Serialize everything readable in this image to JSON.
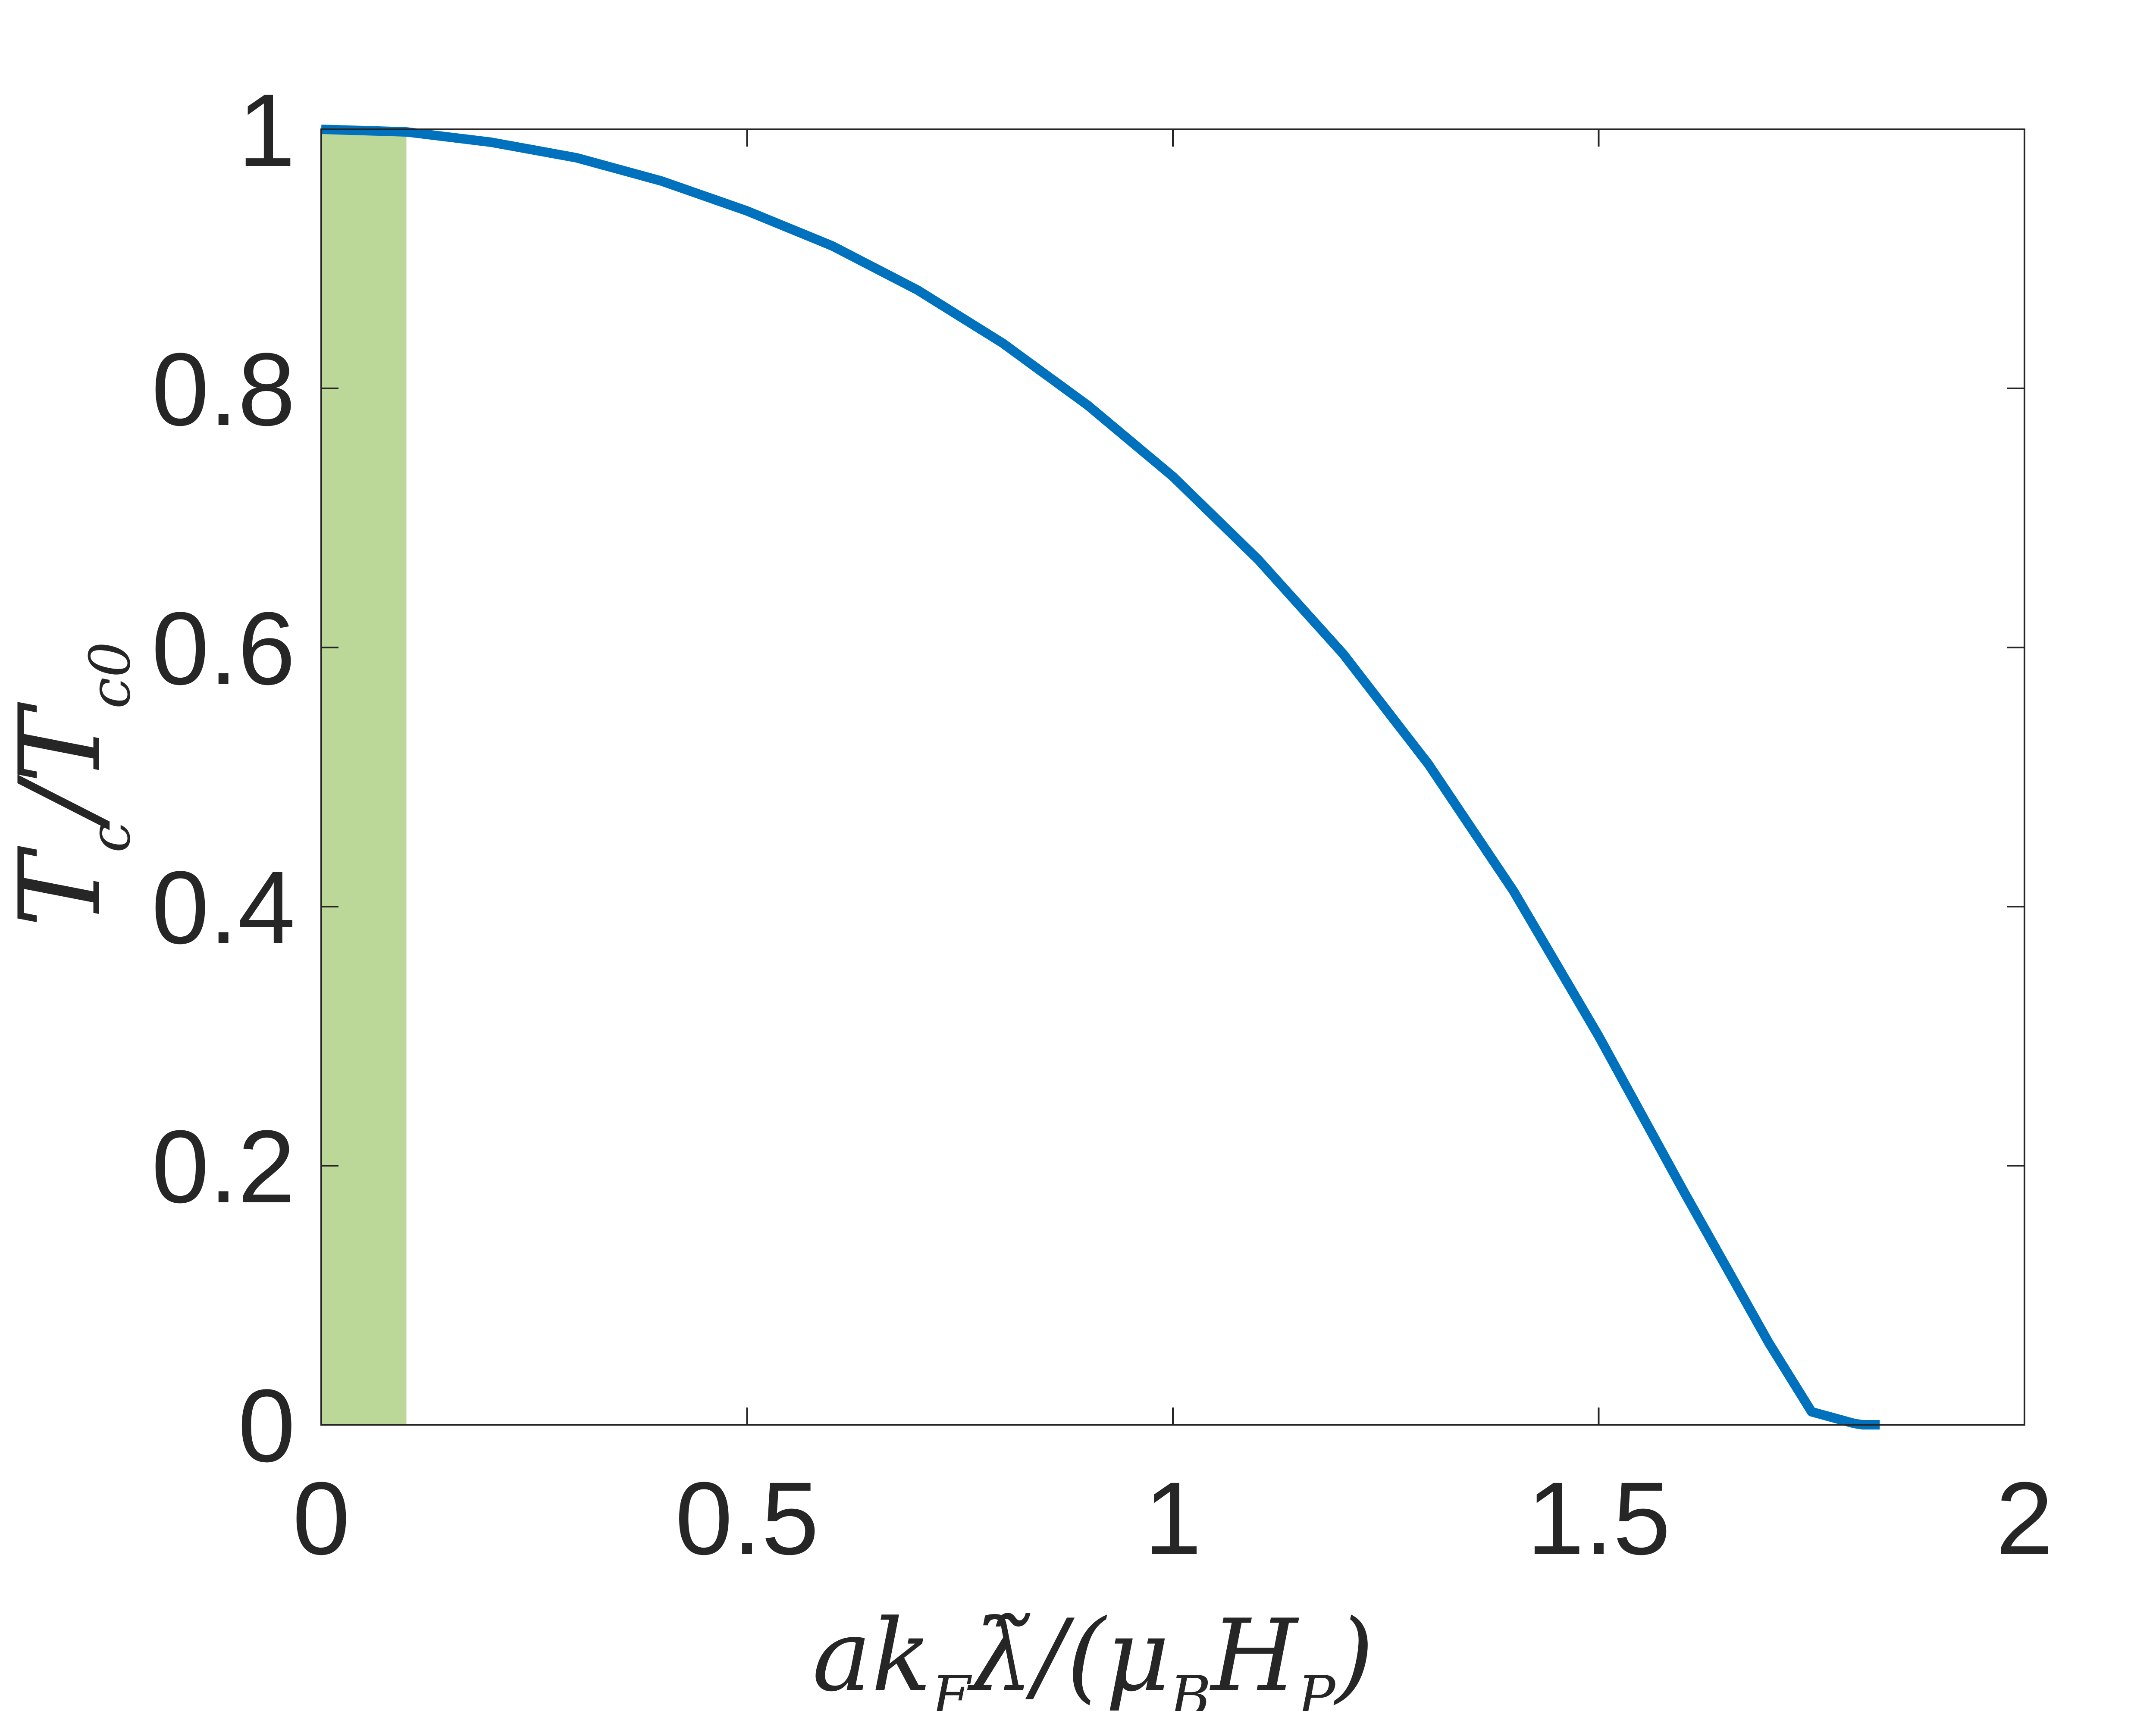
{
  "chart_data": {
    "type": "line",
    "title": "",
    "xlabel": "ak_F λ̃/(μ_B H_P)",
    "ylabel": "T_c/T_c0",
    "xlim": [
      0,
      2
    ],
    "ylim": [
      0,
      1
    ],
    "xticks": [
      0,
      0.5,
      1,
      1.5,
      2
    ],
    "yticks": [
      0,
      0.2,
      0.4,
      0.6,
      0.8,
      1
    ],
    "xtick_labels": [
      "0",
      "0.5",
      "1",
      "1.5",
      "2"
    ],
    "ytick_labels": [
      "0",
      "0.2",
      "0.4",
      "0.6",
      "0.8",
      "1"
    ],
    "grid": false,
    "shaded_region": {
      "x": [
        0,
        0.1
      ],
      "y": [
        0,
        1
      ],
      "color": "#bcd899"
    },
    "series": [
      {
        "color": "#0072bd",
        "x": [
          0,
          0.1,
          0.2,
          0.3,
          0.4,
          0.5,
          0.6,
          0.7,
          0.8,
          0.9,
          1.0,
          1.1,
          1.2,
          1.3,
          1.4,
          1.5,
          1.6,
          1.7,
          1.75,
          1.8,
          1.81,
          1.83
        ],
        "y": [
          1.0,
          0.998,
          0.99,
          0.978,
          0.96,
          0.937,
          0.91,
          0.876,
          0.835,
          0.787,
          0.732,
          0.668,
          0.595,
          0.51,
          0.412,
          0.3,
          0.18,
          0.063,
          0.01,
          0.001,
          0.0,
          0.0
        ]
      }
    ]
  }
}
